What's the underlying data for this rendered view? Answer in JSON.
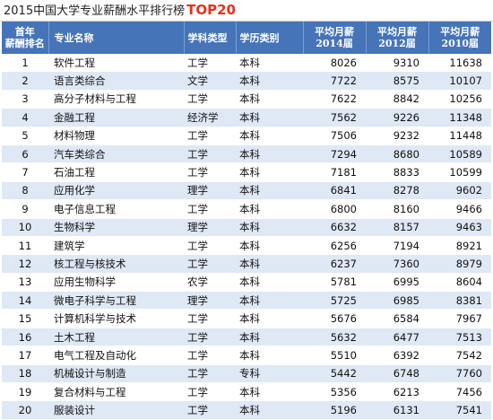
{
  "title": {
    "main": "2015中国大学专业薪酬水平排行榜",
    "accent": "TOP20"
  },
  "header": {
    "rank_line1": "首年",
    "rank_line2": "薪酬排名",
    "name": "专业名称",
    "type": "学科类型",
    "level": "学历类别",
    "s2014_line1": "平均月薪",
    "s2014_line2": "2014届",
    "s2012_line1": "平均月薪",
    "s2012_line2": "2012届",
    "s2010_line1": "平均月薪",
    "s2010_line2": "2010届"
  },
  "rows": [
    {
      "rank": "1",
      "name": "软件工程",
      "type": "工学",
      "level": "本科",
      "s2014": "8026",
      "s2012": "9310",
      "s2010": "11638"
    },
    {
      "rank": "2",
      "name": "语言类综合",
      "type": "文学",
      "level": "本科",
      "s2014": "7722",
      "s2012": "8575",
      "s2010": "10107"
    },
    {
      "rank": "3",
      "name": "高分子材料与工程",
      "type": "工学",
      "level": "本科",
      "s2014": "7622",
      "s2012": "8842",
      "s2010": "10256"
    },
    {
      "rank": "4",
      "name": "金融工程",
      "type": "经济学",
      "level": "本科",
      "s2014": "7562",
      "s2012": "9226",
      "s2010": "11348"
    },
    {
      "rank": "5",
      "name": "材料物理",
      "type": "工学",
      "level": "本科",
      "s2014": "7506",
      "s2012": "9232",
      "s2010": "11448"
    },
    {
      "rank": "6",
      "name": "汽车类综合",
      "type": "工学",
      "level": "本科",
      "s2014": "7294",
      "s2012": "8680",
      "s2010": "10589"
    },
    {
      "rank": "7",
      "name": "石油工程",
      "type": "工学",
      "level": "本科",
      "s2014": "7181",
      "s2012": "8833",
      "s2010": "10599"
    },
    {
      "rank": "8",
      "name": "应用化学",
      "type": "理学",
      "level": "本科",
      "s2014": "6841",
      "s2012": "8278",
      "s2010": "9602"
    },
    {
      "rank": "9",
      "name": "电子信息工程",
      "type": "工学",
      "level": "本科",
      "s2014": "6800",
      "s2012": "8160",
      "s2010": "9466"
    },
    {
      "rank": "10",
      "name": "生物科学",
      "type": "理学",
      "level": "本科",
      "s2014": "6632",
      "s2012": "8157",
      "s2010": "9463"
    },
    {
      "rank": "11",
      "name": "建筑学",
      "type": "工学",
      "level": "本科",
      "s2014": "6256",
      "s2012": "7194",
      "s2010": "8921"
    },
    {
      "rank": "12",
      "name": "核工程与核技术",
      "type": "工学",
      "level": "本科",
      "s2014": "6237",
      "s2012": "7360",
      "s2010": "8979"
    },
    {
      "rank": "13",
      "name": "应用生物科学",
      "type": "农学",
      "level": "本科",
      "s2014": "5781",
      "s2012": "6995",
      "s2010": "8604"
    },
    {
      "rank": "14",
      "name": "微电子科学与工程",
      "type": "理学",
      "level": "本科",
      "s2014": "5725",
      "s2012": "6985",
      "s2010": "8381"
    },
    {
      "rank": "15",
      "name": "计算机科学与技术",
      "type": "工学",
      "level": "本科",
      "s2014": "5676",
      "s2012": "6584",
      "s2010": "7967"
    },
    {
      "rank": "16",
      "name": "土木工程",
      "type": "工学",
      "level": "本科",
      "s2014": "5632",
      "s2012": "6477",
      "s2010": "7513"
    },
    {
      "rank": "17",
      "name": "电气工程及自动化",
      "type": "工学",
      "level": "本科",
      "s2014": "5510",
      "s2012": "6392",
      "s2010": "7542"
    },
    {
      "rank": "18",
      "name": "机械设计与制造",
      "type": "工学",
      "level": "专科",
      "s2014": "5442",
      "s2012": "6748",
      "s2010": "7760"
    },
    {
      "rank": "19",
      "name": "复合材料与工程",
      "type": "工学",
      "level": "本科",
      "s2014": "5356",
      "s2012": "6213",
      "s2010": "7456"
    },
    {
      "rank": "20",
      "name": "服装设计",
      "type": "工学",
      "level": "本科",
      "s2014": "5196",
      "s2012": "6131",
      "s2010": "7541"
    }
  ],
  "colors": {
    "header_bg": "#4674b8",
    "stripe_bg": "#dfe8f5",
    "accent": "#e8311a"
  }
}
